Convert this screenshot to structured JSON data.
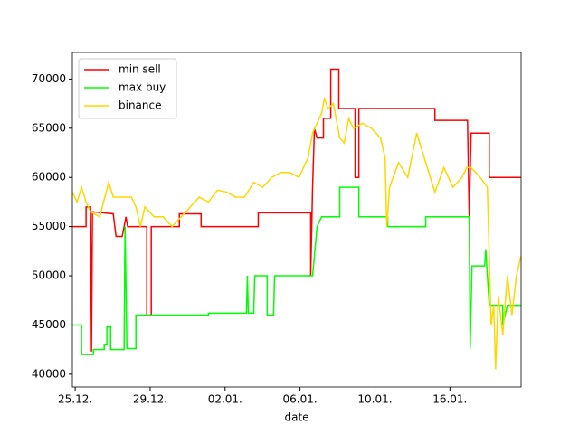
{
  "chart_data": {
    "type": "line",
    "xlabel": "date",
    "xlim": [
      -0.15,
      23.8
    ],
    "xticks": [
      {
        "value": 0,
        "label": "25.12."
      },
      {
        "value": 4,
        "label": "29.12."
      },
      {
        "value": 8,
        "label": "02.01."
      },
      {
        "value": 12,
        "label": "06.01."
      },
      {
        "value": 16,
        "label": "10.01."
      },
      {
        "value": 20,
        "label": "16.01."
      }
    ],
    "ylim": [
      38700,
      72700
    ],
    "yticks": [
      40000,
      45000,
      50000,
      55000,
      60000,
      65000,
      70000
    ],
    "legend": "upper left",
    "series": [
      {
        "name": "min sell",
        "color": "#ff0000",
        "x": [
          -0.15,
          0.58,
          0.58,
          0.82,
          0.87,
          0.92,
          2.03,
          2.18,
          2.51,
          2.61,
          2.71,
          2.8,
          3.82,
          3.82,
          4.06,
          4.06,
          5.56,
          5.56,
          6.72,
          6.72,
          9.77,
          9.77,
          12.57,
          12.57,
          12.67,
          12.77,
          12.91,
          13.25,
          13.25,
          13.64,
          13.64,
          14.07,
          14.07,
          14.94,
          14.94,
          15.14,
          15.14,
          19.2,
          19.2,
          20.94,
          21.03,
          21.13,
          22.1,
          22.1,
          23.79
        ],
        "values": [
          55000,
          55000,
          57000,
          57000,
          42300,
          56500,
          56300,
          54000,
          54000,
          55000,
          56000,
          55000,
          55000,
          46000,
          46000,
          55000,
          55000,
          56300,
          56300,
          55000,
          55000,
          56400,
          56400,
          50000,
          59000,
          65000,
          64000,
          64000,
          66000,
          66000,
          71000,
          71000,
          67000,
          67000,
          60000,
          60000,
          67000,
          67000,
          65800,
          65800,
          56000,
          64500,
          64500,
          60000,
          60000
        ]
      },
      {
        "name": "max buy",
        "color": "#00ff00",
        "x": [
          -0.15,
          0.34,
          0.34,
          0.97,
          0.97,
          1.55,
          1.55,
          1.69,
          1.69,
          1.89,
          1.89,
          2.61,
          2.66,
          2.76,
          3.24,
          3.24,
          7.11,
          7.11,
          9.14,
          9.19,
          9.24,
          9.53,
          9.58,
          10.25,
          10.25,
          10.59,
          10.64,
          12.67,
          12.91,
          13.15,
          14.12,
          14.12,
          15.14,
          15.14,
          16.68,
          16.68,
          18.71,
          18.71,
          21.03,
          21.08,
          21.18,
          21.86,
          21.91,
          22.1,
          22.82,
          22.82,
          23.07,
          23.79
        ],
        "values": [
          45000,
          45000,
          42000,
          42000,
          42500,
          42500,
          43000,
          43000,
          44800,
          44800,
          42500,
          42500,
          55000,
          42600,
          42600,
          46000,
          46000,
          46200,
          46200,
          50000,
          46200,
          46200,
          50000,
          50000,
          46000,
          46000,
          50000,
          50000,
          55000,
          56000,
          56000,
          59000,
          59000,
          56000,
          56000,
          55000,
          55000,
          56000,
          56000,
          42600,
          51000,
          51000,
          52700,
          47000,
          47000,
          45000,
          47000,
          47000
        ]
      },
      {
        "name": "binance",
        "color": "#ffd700",
        "x": [
          -0.15,
          0.1,
          0.34,
          0.58,
          0.82,
          1.31,
          1.79,
          2.03,
          2.51,
          3.0,
          3.24,
          3.48,
          3.72,
          4.21,
          4.69,
          5.17,
          5.66,
          6.14,
          6.62,
          7.11,
          7.59,
          8.08,
          8.56,
          9.04,
          9.53,
          10.01,
          10.49,
          10.98,
          11.46,
          11.94,
          12.43,
          12.67,
          12.91,
          13.15,
          13.3,
          13.49,
          13.78,
          14.12,
          14.36,
          14.6,
          14.85,
          15.33,
          15.81,
          16.3,
          16.54,
          16.63,
          16.78,
          17.26,
          17.75,
          18.23,
          18.71,
          19.2,
          19.68,
          20.16,
          20.65,
          20.89,
          21.13,
          21.62,
          22.0,
          22.2,
          22.34,
          22.44,
          22.58,
          22.82,
          23.07,
          23.31,
          23.55,
          23.79
        ],
        "values": [
          58500,
          57500,
          59000,
          57500,
          56500,
          56000,
          59500,
          58000,
          58000,
          58000,
          57000,
          55000,
          57000,
          56000,
          56000,
          55000,
          56000,
          57000,
          58000,
          57500,
          58700,
          58500,
          58000,
          58000,
          59500,
          59000,
          60000,
          60500,
          60500,
          60000,
          62000,
          64500,
          65500,
          66500,
          68000,
          67000,
          67500,
          64000,
          63500,
          66000,
          65000,
          65500,
          65000,
          64000,
          62000,
          55000,
          59000,
          61500,
          60000,
          64500,
          61500,
          58500,
          61000,
          59000,
          60000,
          61000,
          61000,
          60000,
          59000,
          45000,
          47000,
          40500,
          48000,
          44000,
          50000,
          46000,
          50000,
          52000
        ]
      }
    ]
  }
}
